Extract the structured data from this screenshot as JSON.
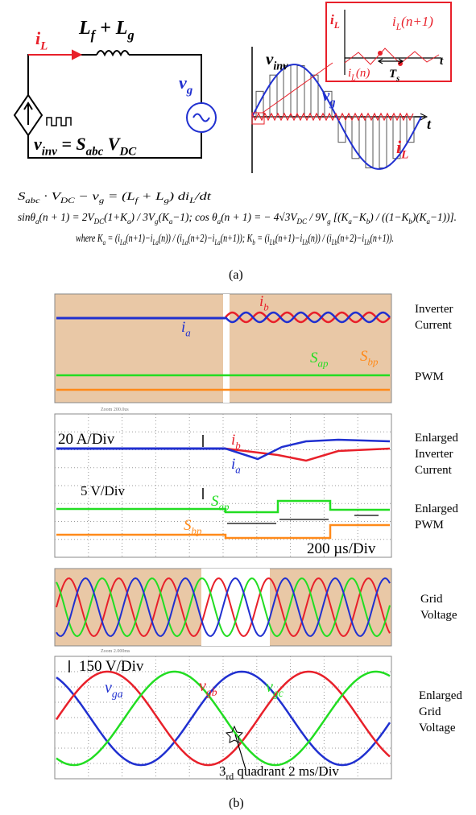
{
  "panel_a": {
    "circuit": {
      "current": [
        {
          "text": "i"
        },
        {
          "sub": "L"
        }
      ],
      "inductor": [
        {
          "text": "L"
        },
        {
          "sub": "f"
        },
        {
          "text": " + L"
        },
        {
          "sub": "g"
        }
      ],
      "grid_voltage": [
        {
          "text": "v"
        },
        {
          "sub": "g"
        }
      ],
      "inverter_voltage": [
        {
          "text": "v"
        },
        {
          "sub": "inv"
        },
        {
          "text": " = S"
        },
        {
          "sub": "abc"
        },
        {
          "text": " V"
        },
        {
          "sub": "DC"
        }
      ]
    },
    "waveform": {
      "inverter_voltage": [
        {
          "text": "v"
        },
        {
          "sub": "inv"
        }
      ],
      "grid_voltage": [
        {
          "text": "v"
        },
        {
          "sub": "g"
        }
      ],
      "current": [
        {
          "text": "i"
        },
        {
          "sub": "L"
        }
      ],
      "time_axis": "t"
    },
    "inset": {
      "y_axis": [
        {
          "text": "i"
        },
        {
          "sub": "L"
        }
      ],
      "next_sample": [
        {
          "text": "i"
        },
        {
          "sub": "L"
        },
        {
          "text": "(n+1)"
        }
      ],
      "sample": [
        {
          "text": "i"
        },
        {
          "sub": "L"
        },
        {
          "text": "(n)"
        }
      ],
      "period": [
        {
          "text": "T"
        },
        {
          "sub": "s"
        }
      ],
      "time_axis": "t"
    },
    "equations": [
      [
        {
          "text": "S"
        },
        {
          "sub": "abc"
        },
        {
          "text": " · V"
        },
        {
          "sub": "DC"
        },
        {
          "text": " − v"
        },
        {
          "sub": "g"
        },
        {
          "text": " = (L"
        },
        {
          "sub": "f"
        },
        {
          "text": " + L"
        },
        {
          "sub": "g"
        },
        {
          "text": ") di"
        },
        {
          "sub": "L"
        },
        {
          "text": "/dt"
        }
      ],
      [
        {
          "text": "sinθ"
        },
        {
          "sub": "a"
        },
        {
          "text": "(n + 1) = 2V"
        },
        {
          "sub": "DC"
        },
        {
          "text": "(1+K"
        },
        {
          "sub": "a"
        },
        {
          "text": ") / 3V"
        },
        {
          "sub": "g"
        },
        {
          "text": "(K"
        },
        {
          "sub": "a"
        },
        {
          "text": "−1); cos θ"
        },
        {
          "sub": "a"
        },
        {
          "text": "(n + 1) = − 4√3V"
        },
        {
          "sub": "DC"
        },
        {
          "text": " / 9V"
        },
        {
          "sub": "g"
        },
        {
          "text": " [(K"
        },
        {
          "sub": "a"
        },
        {
          "text": "−K"
        },
        {
          "sub": "b"
        },
        {
          "text": ") / ((1−K"
        },
        {
          "sub": "b"
        },
        {
          "text": ")(K"
        },
        {
          "sub": "a"
        },
        {
          "text": "−1))]."
        }
      ],
      [
        {
          "text": "where K"
        },
        {
          "sub": "a"
        },
        {
          "text": " = (i"
        },
        {
          "sub": "La"
        },
        {
          "text": "(n+1)−i"
        },
        {
          "sub": "La"
        },
        {
          "text": "(n)) / (i"
        },
        {
          "sub": "La"
        },
        {
          "text": "(n+2)−i"
        },
        {
          "sub": "La"
        },
        {
          "text": "(n+1)); K"
        },
        {
          "sub": "b"
        },
        {
          "text": " = (i"
        },
        {
          "sub": "Lb"
        },
        {
          "text": "(n+1)−i"
        },
        {
          "sub": "Lb"
        },
        {
          "text": "(n)) / (i"
        },
        {
          "sub": "Lb"
        },
        {
          "text": "(n+2)−i"
        },
        {
          "sub": "Lb"
        },
        {
          "text": "(n+1))."
        }
      ]
    ],
    "caption": "(a)"
  },
  "panel_b": {
    "scope1": {
      "ib": [
        {
          "text": "i"
        },
        {
          "sub": "b"
        }
      ],
      "ia": [
        {
          "text": "i"
        },
        {
          "sub": "a"
        }
      ],
      "sap": [
        {
          "text": "S"
        },
        {
          "sub": "ap"
        }
      ],
      "sbp": [
        {
          "text": "S"
        },
        {
          "sub": "bp"
        }
      ],
      "side_current": [
        "Inverter",
        "Current"
      ],
      "side_pwm": [
        "PWM"
      ],
      "zoom": "Zoom 200.0us"
    },
    "scope2": {
      "current_scale": "20 A/Div",
      "ib": [
        {
          "text": "i"
        },
        {
          "sub": "b"
        }
      ],
      "ia": [
        {
          "text": "i"
        },
        {
          "sub": "a"
        }
      ],
      "voltage_scale": "5 V/Div",
      "sap": [
        {
          "text": "S"
        },
        {
          "sub": "ap"
        }
      ],
      "sbp": [
        {
          "text": "S"
        },
        {
          "sub": "bp"
        }
      ],
      "time_scale": "200 µs/Div",
      "side_current": [
        "Enlarged",
        "Inverter",
        "Current"
      ],
      "side_pwm": [
        "Enlarged",
        "PWM"
      ]
    },
    "scope3": {
      "side": [
        "Grid",
        "Voltage"
      ],
      "zoom": "Zoom 2.000ms"
    },
    "scope4": {
      "voltage_scale": "150 V/Div",
      "vga": [
        {
          "text": "v"
        },
        {
          "sub": "ga"
        }
      ],
      "vgb": [
        {
          "text": "v"
        },
        {
          "sub": "gb"
        }
      ],
      "vgc": [
        {
          "text": "v"
        },
        {
          "sub": "gc"
        }
      ],
      "quadrant": [
        {
          "text": "3"
        },
        {
          "sub": "rd"
        },
        {
          "text": " quadrant  2 ms/Div"
        }
      ],
      "side": [
        "Enlarged",
        "Grid",
        "Voltage"
      ]
    },
    "caption": "(b)"
  }
}
